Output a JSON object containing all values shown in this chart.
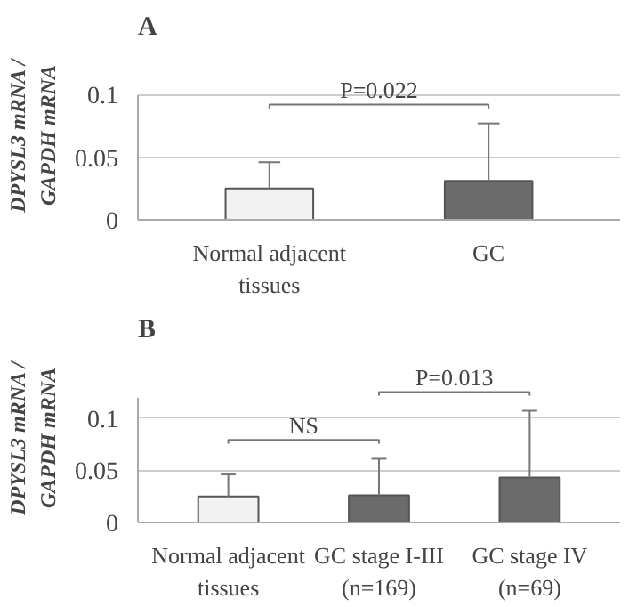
{
  "chart_data": [
    {
      "type": "bar",
      "title": "A",
      "ylabel": "DPYSL3 mRNA /\nGAPDH mRNA",
      "categories": [
        "Normal adjacent\ntissues",
        "GC"
      ],
      "values": [
        0.025,
        0.031
      ],
      "colors": [
        "#f2f2f2",
        "#6b6b6b"
      ],
      "errors": [
        [
          0.025,
          0.046
        ],
        [
          0.031,
          0.077
        ]
      ],
      "ylim": [
        0,
        0.1
      ],
      "yticks": [
        0,
        0.05,
        0.1
      ],
      "grid": "y",
      "annotations": [
        "P=0.022"
      ]
    },
    {
      "type": "bar",
      "title": "B",
      "ylabel": "DPYSL3 mRNA /\nGAPDH mRNA",
      "categories": [
        "Normal adjacent\ntissues",
        "GC stage I-III\n(n=169)",
        "GC stage IV\n(n=69)"
      ],
      "values": [
        0.025,
        0.026,
        0.043
      ],
      "colors": [
        "#f2f2f2",
        "#6b6b6b",
        "#6b6b6b"
      ],
      "errors": [
        [
          0.025,
          0.046
        ],
        [
          0.026,
          0.061
        ],
        [
          0.043,
          0.107
        ]
      ],
      "ylim": [
        0,
        0.12
      ],
      "yticks": [
        0,
        0.05,
        0.1
      ],
      "grid": "y",
      "annotations": [
        "NS",
        "P=0.013"
      ]
    }
  ]
}
